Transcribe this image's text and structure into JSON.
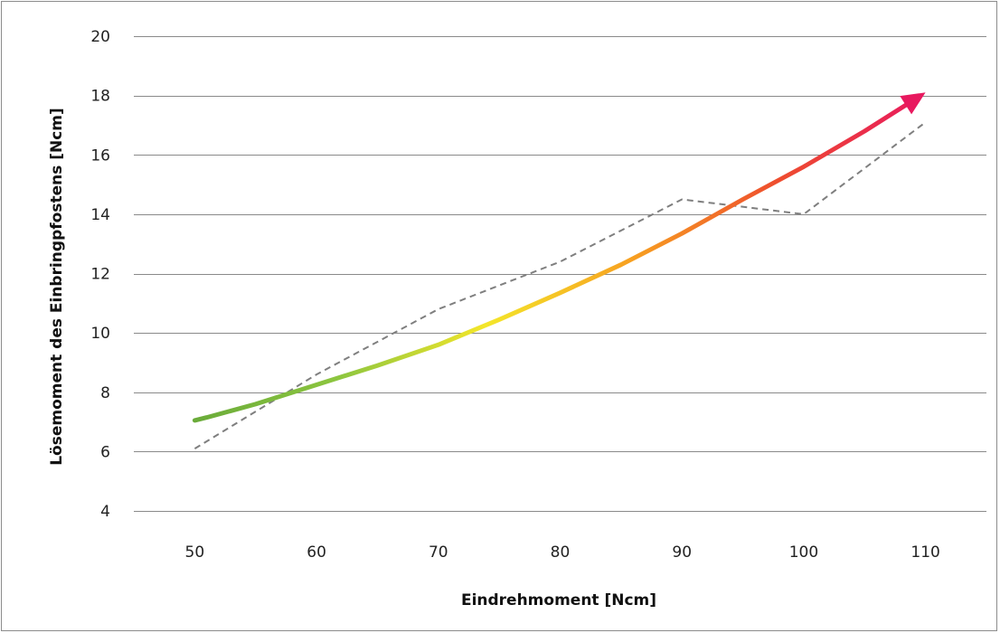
{
  "chart_data": {
    "type": "line",
    "title": "",
    "xlabel": "Eindrehmoment [Ncm]",
    "ylabel": "Lösemoment des Einbringpfostens [Ncm]",
    "xlim": [
      45,
      115
    ],
    "ylim": [
      4,
      20
    ],
    "x_ticks": [
      50,
      60,
      70,
      80,
      90,
      100,
      110
    ],
    "y_ticks": [
      4,
      6,
      8,
      10,
      12,
      14,
      16,
      18,
      20
    ],
    "grid": "horizontal",
    "legend": "none",
    "series": [
      {
        "style": "dashed",
        "color": "#7f7f7f",
        "x": [
          50,
          60,
          70,
          80,
          90,
          100,
          110
        ],
        "y": [
          6.1,
          8.6,
          10.8,
          12.4,
          14.5,
          14.0,
          17.1
        ]
      },
      {
        "style": "trend-arrow",
        "colors": [
          "#6aab3a",
          "#8dc63f",
          "#f4e62a",
          "#f7a021",
          "#ee4d2e",
          "#e8195f"
        ],
        "x": [
          50,
          51,
          55,
          60,
          65,
          70,
          75,
          80,
          85,
          90,
          95,
          100,
          105,
          110
        ],
        "y": [
          7.05,
          7.15,
          7.6,
          8.25,
          8.9,
          9.6,
          10.45,
          11.35,
          12.3,
          13.35,
          14.5,
          15.6,
          16.8,
          18.1
        ]
      }
    ]
  }
}
